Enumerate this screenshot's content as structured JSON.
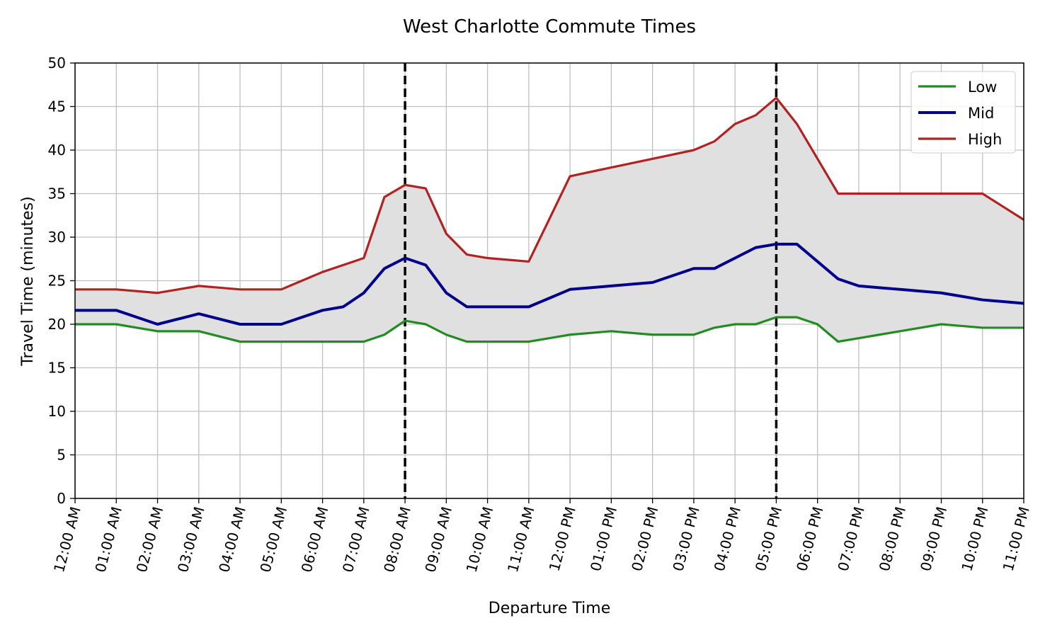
{
  "chart_data": {
    "type": "line",
    "title": "West Charlotte Commute Times",
    "xlabel": "Departure Time",
    "ylabel": "Travel Time (minutes)",
    "ylim": [
      0,
      50
    ],
    "xlim": [
      0,
      23
    ],
    "yticks": [
      0,
      5,
      10,
      15,
      20,
      25,
      30,
      35,
      40,
      45,
      50
    ],
    "xtick_values": [
      0,
      1,
      2,
      3,
      4,
      5,
      6,
      7,
      8,
      9,
      10,
      11,
      12,
      13,
      14,
      15,
      16,
      17,
      18,
      19,
      20,
      21,
      22,
      23
    ],
    "xtick_labels": [
      "12:00 AM",
      "01:00 AM",
      "02:00 AM",
      "03:00 AM",
      "04:00 AM",
      "05:00 AM",
      "06:00 AM",
      "07:00 AM",
      "08:00 AM",
      "09:00 AM",
      "10:00 AM",
      "11:00 AM",
      "12:00 PM",
      "01:00 PM",
      "02:00 PM",
      "03:00 PM",
      "04:00 PM",
      "05:00 PM",
      "06:00 PM",
      "07:00 PM",
      "08:00 PM",
      "09:00 PM",
      "10:00 PM",
      "11:00 PM"
    ],
    "grid": true,
    "legend_position": "top-right",
    "vertical_lines": [
      8,
      17
    ],
    "fill_between": [
      "Low",
      "High"
    ],
    "fill_color": "#e0e0e0",
    "x": [
      0,
      0.5,
      1,
      1.5,
      2,
      2.5,
      3,
      3.5,
      4,
      4.5,
      5,
      5.5,
      6,
      6.5,
      7,
      7.5,
      8,
      8.5,
      9,
      9.5,
      10,
      10.5,
      11,
      11.5,
      12,
      12.5,
      13,
      13.5,
      14,
      14.5,
      15,
      15.5,
      16,
      16.5,
      17,
      17.5,
      18,
      18.5,
      19,
      19.5,
      20,
      20.5,
      21,
      21.5,
      22,
      22.5,
      23
    ],
    "series": [
      {
        "name": "Low",
        "color": "#228b22",
        "values": [
          20,
          20,
          20,
          19.6,
          19.2,
          19.2,
          19.2,
          18.6,
          18,
          18,
          18,
          18,
          18,
          18,
          18,
          18.8,
          20.4,
          20,
          18.8,
          18,
          18,
          18,
          18,
          18.4,
          18.8,
          19,
          19.2,
          19,
          18.8,
          18.8,
          18.8,
          19.6,
          20,
          20,
          20.8,
          20.8,
          20,
          18,
          18.4,
          18.8,
          19.2,
          19.6,
          20,
          19.8,
          19.6,
          19.6,
          19.6
        ]
      },
      {
        "name": "Mid",
        "color": "#00008b",
        "values": [
          21.6,
          21.6,
          21.6,
          20.8,
          20,
          20.6,
          21.2,
          20.6,
          20,
          20,
          20,
          20.8,
          21.6,
          22,
          23.6,
          26.4,
          27.6,
          26.8,
          23.6,
          22,
          22,
          22,
          22,
          23,
          24,
          24.2,
          24.4,
          24.6,
          24.8,
          25.6,
          26.4,
          26.4,
          27.6,
          28.8,
          29.2,
          29.2,
          27.2,
          25.2,
          24.4,
          24.2,
          24,
          23.8,
          23.6,
          23.2,
          22.8,
          22.6,
          22.4
        ]
      },
      {
        "name": "High",
        "color": "#b22222",
        "values": [
          24,
          24,
          24,
          23.8,
          23.6,
          24,
          24.4,
          24.2,
          24,
          24,
          24,
          25,
          26,
          26.8,
          27.6,
          34.6,
          36,
          35.6,
          30.4,
          28,
          27.6,
          27.4,
          27.2,
          32.1,
          37,
          37.5,
          38,
          38.5,
          39,
          39.5,
          40,
          41,
          43,
          44,
          46,
          43,
          39,
          35,
          35,
          35,
          35,
          35,
          35,
          35,
          35,
          33.5,
          32
        ]
      }
    ]
  }
}
